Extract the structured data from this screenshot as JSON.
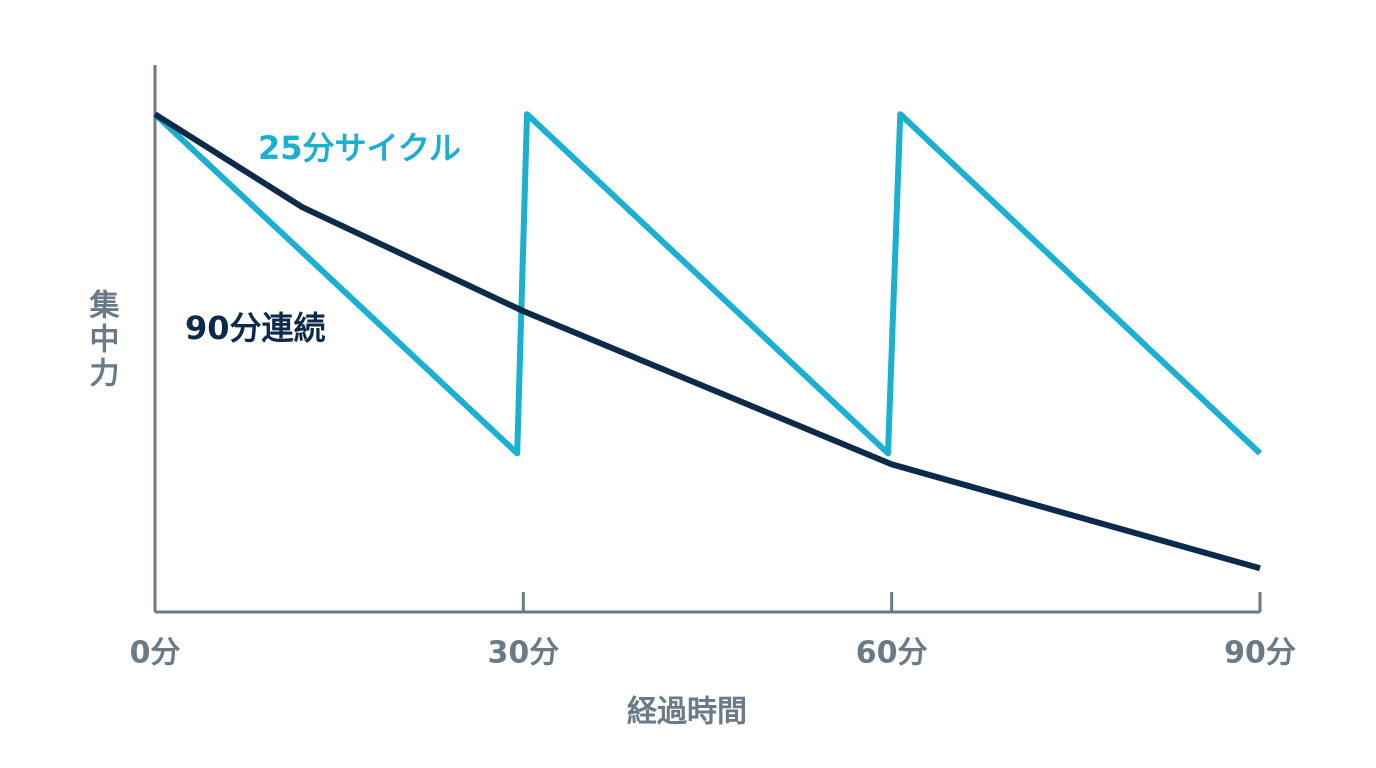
{
  "chart_data": {
    "type": "line",
    "x_label": "経過時間",
    "y_label": "集中力",
    "xlim": [
      0,
      90
    ],
    "ylim": [
      0,
      100
    ],
    "xticks": [
      {
        "value": 0,
        "label": "0分"
      },
      {
        "value": 30,
        "label": "30分"
      },
      {
        "value": 60,
        "label": "60分"
      },
      {
        "value": 90,
        "label": "90分"
      }
    ],
    "series": [
      {
        "name": "25分サイクル",
        "color": "#1ab0d0",
        "x": [
          0,
          29.5,
          30.3,
          59.7,
          60.7,
          90
        ],
        "values": [
          91,
          29,
          91,
          29,
          91,
          29
        ]
      },
      {
        "name": "90分連続",
        "color": "#0d2a4a",
        "x": [
          0,
          12,
          30,
          60,
          90
        ],
        "values": [
          91,
          74,
          55,
          27,
          8
        ]
      }
    ]
  }
}
